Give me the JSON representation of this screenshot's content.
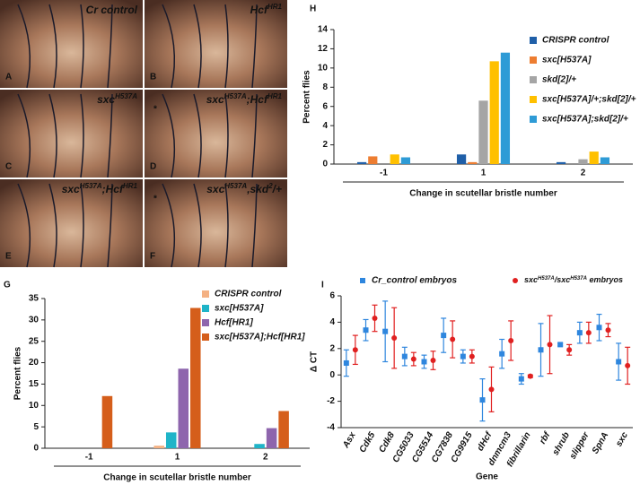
{
  "photos": [
    {
      "letter": "A",
      "label": [
        "Cr control"
      ]
    },
    {
      "letter": "B",
      "label": [
        "Hcf",
        "HR1"
      ]
    },
    {
      "letter": "C",
      "label": [
        "sxc",
        "H537A"
      ]
    },
    {
      "letter": "D",
      "label": [
        "sxc",
        "H537A",
        ";Hcf",
        "HR1"
      ],
      "mark": "*"
    },
    {
      "letter": "E",
      "label": [
        "sxc",
        "H537A",
        ";Hcf",
        "HR1"
      ]
    },
    {
      "letter": "F",
      "label": [
        "sxc",
        "H537A",
        ",skd",
        "2",
        "/+"
      ],
      "mark": "*"
    }
  ],
  "chart_data": [
    {
      "type": "bar",
      "panel": "H",
      "y_label": "Percent flies",
      "x_label": "Change in scutellar bristle number",
      "categories": [
        "-1",
        "1",
        "2"
      ],
      "ylim": [
        0,
        14
      ],
      "yticks": [
        0,
        2,
        4,
        6,
        8,
        10,
        12,
        14
      ],
      "series": [
        {
          "name": "CRISPR control",
          "color": "#1f5fa8",
          "values": [
            0.2,
            1.0,
            0.2
          ]
        },
        {
          "name": "sxc[H537A]",
          "color": "#ed7d31",
          "values": [
            0.8,
            0.2,
            0
          ]
        },
        {
          "name": "skd[2]/+",
          "color": "#a5a5a5",
          "values": [
            0,
            6.6,
            0.5
          ]
        },
        {
          "name": "sxc[H537A]/+;skd[2]/+",
          "color": "#ffc000",
          "values": [
            1.0,
            10.7,
            1.3
          ]
        },
        {
          "name": "sxc[H537A];skd[2]/+",
          "color": "#2e9bd6",
          "values": [
            0.7,
            11.6,
            0.7
          ]
        }
      ]
    },
    {
      "type": "bar",
      "panel": "G",
      "y_label": "Percent flies",
      "x_label": "Change in scutellar bristle number",
      "categories": [
        "-1",
        "1",
        "2"
      ],
      "ylim": [
        0,
        35
      ],
      "yticks": [
        0,
        5,
        10,
        15,
        20,
        25,
        30,
        35
      ],
      "series": [
        {
          "name": "CRISPR control",
          "color": "#f4b183",
          "values": [
            0,
            0.6,
            0
          ]
        },
        {
          "name": "sxc[H537A]",
          "color": "#1fb4c8",
          "values": [
            0,
            3.7,
            1.0
          ]
        },
        {
          "name": "Hcf[HR1]",
          "color": "#8e65ad",
          "values": [
            0,
            18.6,
            4.7
          ]
        },
        {
          "name": "sxc[H537A];Hcf[HR1]",
          "color": "#d55e1b",
          "values": [
            12.2,
            32.8,
            8.7
          ]
        }
      ]
    },
    {
      "type": "errordot",
      "panel": "I",
      "y_label": "Δ CT",
      "x_label": "Gene",
      "categories": [
        "Asx",
        "Cdk5",
        "Cdk8",
        "CG5033",
        "CG5514",
        "CG7838",
        "CG9915",
        "dHcf",
        "dnmcm3",
        "fibrillarin",
        "rbf",
        "shrub",
        "slipper",
        "SpnA",
        "sxc"
      ],
      "ylim": [
        -4,
        6
      ],
      "yticks": [
        -4,
        -2,
        0,
        2,
        4,
        6
      ],
      "series": [
        {
          "name": "Cr_control embryos",
          "color": "#2e86de",
          "values": [
            0.9,
            3.4,
            3.3,
            1.4,
            1.0,
            3.0,
            1.4,
            -1.9,
            1.6,
            -0.3,
            1.9,
            2.3,
            3.2,
            3.6,
            1.0
          ],
          "errors": [
            1.0,
            0.8,
            2.3,
            0.7,
            0.5,
            1.3,
            0.5,
            1.6,
            1.1,
            0.4,
            2.0,
            0.1,
            0.8,
            1.0,
            1.4
          ]
        },
        {
          "name": [
            "sxc",
            "H537A",
            "/sxc",
            "H537A",
            " embryos"
          ],
          "color": "#e02020",
          "values": [
            1.9,
            4.3,
            2.8,
            1.2,
            1.1,
            2.7,
            1.4,
            -1.1,
            2.6,
            -0.1,
            2.3,
            1.9,
            3.2,
            3.4,
            0.7
          ],
          "errors": [
            1.1,
            1.0,
            2.3,
            0.5,
            0.7,
            1.4,
            0.5,
            1.7,
            1.5,
            0.1,
            2.2,
            0.4,
            0.8,
            0.5,
            1.4
          ]
        }
      ]
    }
  ]
}
